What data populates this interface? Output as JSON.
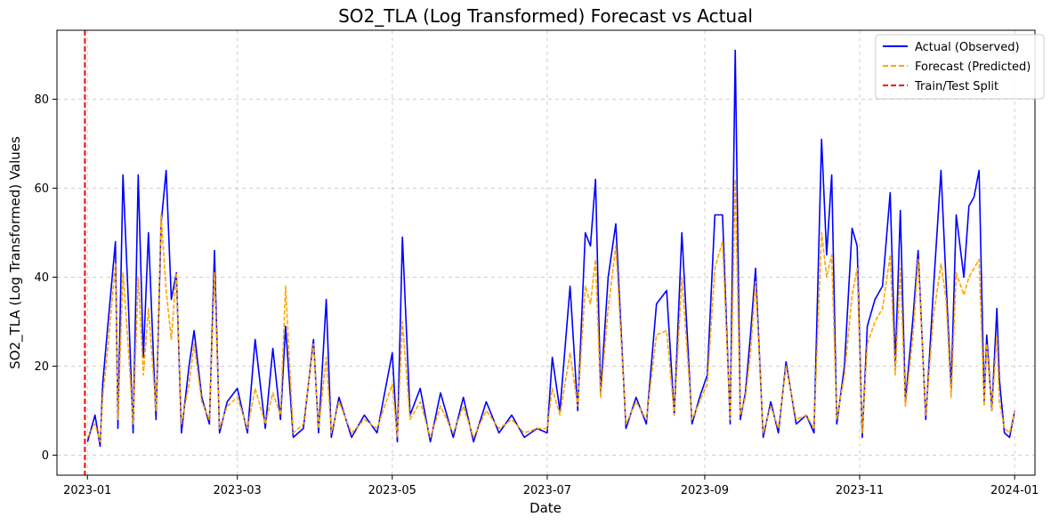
{
  "chart_data": {
    "type": "line",
    "title": "SO2_TLA (Log Transformed) Forecast vs Actual",
    "xlabel": "Date",
    "ylabel": "SO2_TLA (Log Transformed) Values",
    "xlim": [
      "2022-12-20",
      "2024-01-09"
    ],
    "ylim": [
      -4.5,
      95.5
    ],
    "x_ticks": [
      "2023-01",
      "2023-03",
      "2023-05",
      "2023-07",
      "2023-09",
      "2023-11",
      "2024-01"
    ],
    "y_ticks": [
      0,
      20,
      40,
      60,
      80
    ],
    "grid": true,
    "legend_position": "upper right",
    "legend": [
      "Actual (Observed)",
      "Forecast (Predicted)",
      "Train/Test Split"
    ],
    "split_date": "2022-12-31",
    "series": [
      {
        "name": "Actual (Observed)",
        "color": "#0000ff",
        "style": "solid",
        "x": [
          "2023-01-01",
          "2023-01-04",
          "2023-01-06",
          "2023-01-07",
          "2023-01-09",
          "2023-01-12",
          "2023-01-13",
          "2023-01-15",
          "2023-01-17",
          "2023-01-19",
          "2023-01-21",
          "2023-01-23",
          "2023-01-25",
          "2023-01-28",
          "2023-01-30",
          "2023-02-01",
          "2023-02-03",
          "2023-02-05",
          "2023-02-07",
          "2023-02-10",
          "2023-02-12",
          "2023-02-15",
          "2023-02-18",
          "2023-02-20",
          "2023-02-22",
          "2023-02-25",
          "2023-03-01",
          "2023-03-05",
          "2023-03-08",
          "2023-03-12",
          "2023-03-15",
          "2023-03-18",
          "2023-03-20",
          "2023-03-23",
          "2023-03-27",
          "2023-03-31",
          "2023-04-02",
          "2023-04-05",
          "2023-04-07",
          "2023-04-10",
          "2023-04-15",
          "2023-04-20",
          "2023-04-25",
          "2023-05-01",
          "2023-05-03",
          "2023-05-05",
          "2023-05-08",
          "2023-05-12",
          "2023-05-16",
          "2023-05-20",
          "2023-05-25",
          "2023-05-29",
          "2023-06-02",
          "2023-06-07",
          "2023-06-12",
          "2023-06-17",
          "2023-06-22",
          "2023-06-27",
          "2023-07-01",
          "2023-07-03",
          "2023-07-06",
          "2023-07-10",
          "2023-07-13",
          "2023-07-16",
          "2023-07-18",
          "2023-07-20",
          "2023-07-22",
          "2023-07-25",
          "2023-07-28",
          "2023-08-01",
          "2023-08-05",
          "2023-08-09",
          "2023-08-13",
          "2023-08-17",
          "2023-08-20",
          "2023-08-23",
          "2023-08-27",
          "2023-08-30",
          "2023-09-02",
          "2023-09-05",
          "2023-09-08",
          "2023-09-11",
          "2023-09-13",
          "2023-09-15",
          "2023-09-17",
          "2023-09-19",
          "2023-09-21",
          "2023-09-24",
          "2023-09-27",
          "2023-09-30",
          "2023-10-03",
          "2023-10-07",
          "2023-10-11",
          "2023-10-14",
          "2023-10-17",
          "2023-10-19",
          "2023-10-21",
          "2023-10-23",
          "2023-10-26",
          "2023-10-29",
          "2023-10-31",
          "2023-11-02",
          "2023-11-04",
          "2023-11-07",
          "2023-11-10",
          "2023-11-13",
          "2023-11-15",
          "2023-11-17",
          "2023-11-19",
          "2023-11-22",
          "2023-11-24",
          "2023-11-27",
          "2023-11-30",
          "2023-12-03",
          "2023-12-05",
          "2023-12-07",
          "2023-12-09",
          "2023-12-12",
          "2023-12-14",
          "2023-12-16",
          "2023-12-18",
          "2023-12-20",
          "2023-12-21",
          "2023-12-23",
          "2023-12-25",
          "2023-12-26",
          "2023-12-28",
          "2023-12-30",
          "2024-01-01"
        ],
        "values": [
          3,
          9,
          2,
          16,
          29,
          48,
          6,
          63,
          36,
          5,
          63,
          22,
          50,
          8,
          52,
          64,
          35,
          41,
          5,
          20,
          28,
          13,
          7,
          46,
          5,
          12,
          15,
          5,
          26,
          6,
          24,
          8,
          29,
          4,
          6,
          26,
          5,
          35,
          4,
          13,
          4,
          9,
          5,
          23,
          3,
          49,
          9,
          15,
          3,
          14,
          4,
          13,
          3,
          12,
          5,
          9,
          4,
          6,
          5,
          22,
          10,
          38,
          10,
          50,
          47,
          62,
          14,
          40,
          52,
          6,
          13,
          7,
          34,
          37,
          9,
          50,
          7,
          13,
          18,
          54,
          54,
          7,
          91,
          8,
          14,
          27,
          42,
          4,
          12,
          5,
          21,
          7,
          9,
          5,
          71,
          45,
          63,
          7,
          20,
          51,
          47,
          4,
          29,
          35,
          38,
          59,
          20,
          55,
          12,
          31,
          46,
          8,
          37,
          64,
          39,
          15,
          54,
          40,
          56,
          58,
          64,
          12,
          27,
          10,
          33,
          17,
          5,
          4,
          10
        ]
      },
      {
        "name": "Forecast (Predicted)",
        "color": "#ffa500",
        "style": "dashed",
        "x": [
          "2023-01-01",
          "2023-01-04",
          "2023-01-06",
          "2023-01-07",
          "2023-01-09",
          "2023-01-12",
          "2023-01-13",
          "2023-01-15",
          "2023-01-17",
          "2023-01-19",
          "2023-01-21",
          "2023-01-23",
          "2023-01-25",
          "2023-01-28",
          "2023-01-30",
          "2023-02-01",
          "2023-02-03",
          "2023-02-05",
          "2023-02-07",
          "2023-02-10",
          "2023-02-12",
          "2023-02-15",
          "2023-02-18",
          "2023-02-20",
          "2023-02-22",
          "2023-02-25",
          "2023-03-01",
          "2023-03-05",
          "2023-03-08",
          "2023-03-12",
          "2023-03-15",
          "2023-03-18",
          "2023-03-20",
          "2023-03-23",
          "2023-03-27",
          "2023-03-31",
          "2023-04-02",
          "2023-04-05",
          "2023-04-07",
          "2023-04-10",
          "2023-04-15",
          "2023-04-20",
          "2023-04-25",
          "2023-05-01",
          "2023-05-03",
          "2023-05-05",
          "2023-05-08",
          "2023-05-12",
          "2023-05-16",
          "2023-05-20",
          "2023-05-25",
          "2023-05-29",
          "2023-06-02",
          "2023-06-07",
          "2023-06-12",
          "2023-06-17",
          "2023-06-22",
          "2023-06-27",
          "2023-07-01",
          "2023-07-03",
          "2023-07-06",
          "2023-07-10",
          "2023-07-13",
          "2023-07-16",
          "2023-07-18",
          "2023-07-20",
          "2023-07-22",
          "2023-07-25",
          "2023-07-28",
          "2023-08-01",
          "2023-08-05",
          "2023-08-09",
          "2023-08-13",
          "2023-08-17",
          "2023-08-20",
          "2023-08-23",
          "2023-08-27",
          "2023-08-30",
          "2023-09-02",
          "2023-09-05",
          "2023-09-08",
          "2023-09-11",
          "2023-09-13",
          "2023-09-15",
          "2023-09-17",
          "2023-09-19",
          "2023-09-21",
          "2023-09-24",
          "2023-09-27",
          "2023-09-30",
          "2023-10-03",
          "2023-10-07",
          "2023-10-11",
          "2023-10-14",
          "2023-10-17",
          "2023-10-19",
          "2023-10-21",
          "2023-10-23",
          "2023-10-26",
          "2023-10-29",
          "2023-10-31",
          "2023-11-02",
          "2023-11-04",
          "2023-11-07",
          "2023-11-10",
          "2023-11-13",
          "2023-11-15",
          "2023-11-17",
          "2023-11-19",
          "2023-11-22",
          "2023-11-24",
          "2023-11-27",
          "2023-11-30",
          "2023-12-03",
          "2023-12-05",
          "2023-12-07",
          "2023-12-09",
          "2023-12-12",
          "2023-12-14",
          "2023-12-16",
          "2023-12-18",
          "2023-12-20",
          "2023-12-21",
          "2023-12-23",
          "2023-12-25",
          "2023-12-26",
          "2023-12-28",
          "2023-12-30",
          "2024-01-01"
        ],
        "values": [
          4,
          7,
          3,
          13,
          24,
          43,
          8,
          41,
          25,
          7,
          40,
          18,
          33,
          10,
          54,
          37,
          26,
          41,
          7,
          16,
          25,
          12,
          8,
          41,
          6,
          11,
          13,
          6,
          15,
          7,
          14,
          9,
          38,
          5,
          7,
          25,
          6,
          22,
          5,
          12,
          5,
          8,
          6,
          16,
          4,
          30,
          8,
          12,
          4,
          11,
          5,
          11,
          4,
          10,
          6,
          8,
          5,
          6,
          6,
          15,
          9,
          23,
          11,
          38,
          34,
          44,
          13,
          33,
          47,
          7,
          12,
          8,
          27,
          28,
          9,
          40,
          8,
          12,
          16,
          42,
          48,
          8,
          62,
          9,
          13,
          23,
          39,
          5,
          11,
          6,
          20,
          8,
          9,
          6,
          50,
          40,
          45,
          8,
          18,
          36,
          42,
          5,
          25,
          30,
          33,
          45,
          18,
          42,
          11,
          27,
          44,
          9,
          31,
          43,
          35,
          13,
          41,
          36,
          40,
          42,
          44,
          11,
          25,
          10,
          27,
          12,
          6,
          5,
          10
        ]
      }
    ]
  }
}
